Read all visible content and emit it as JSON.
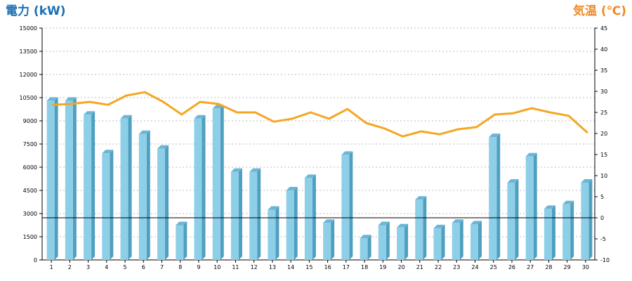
{
  "colors": {
    "left_title": "#1a6fb4",
    "right_title": "#f08a24",
    "bar_front": "#8ecfe8",
    "bar_side": "#4f9fc0",
    "bar_top": "#6bb6d6",
    "line": "#f5a623",
    "grid": "#bbbbbb"
  },
  "chart_data": {
    "type": "bar",
    "ylabel": "電力 (kW)",
    "y2label": "気温 (℃)",
    "ylim": [
      0,
      15000
    ],
    "y2lim": [
      -10,
      45
    ],
    "yticks": [
      0,
      1500,
      3000,
      4500,
      6000,
      7500,
      9000,
      10500,
      12000,
      13500,
      15000
    ],
    "y2ticks": [
      -10,
      -5,
      0,
      5,
      10,
      15,
      20,
      25,
      30,
      35,
      40,
      45
    ],
    "grid": true,
    "categories": [
      "1",
      "2",
      "3",
      "4",
      "5",
      "6",
      "7",
      "8",
      "9",
      "10",
      "11",
      "12",
      "13",
      "14",
      "15",
      "16",
      "17",
      "18",
      "19",
      "20",
      "21",
      "22",
      "23",
      "24",
      "25",
      "26",
      "27",
      "28",
      "29",
      "30"
    ],
    "series": [
      {
        "type": "bar",
        "axis": "left",
        "values": [
          10300,
          10300,
          9400,
          6900,
          9150,
          8150,
          7200,
          2250,
          9150,
          9800,
          5700,
          5700,
          3250,
          4500,
          5300,
          2400,
          6800,
          1400,
          2250,
          2100,
          3900,
          2050,
          2400,
          2300,
          7950,
          5000,
          6700,
          3300,
          3600,
          5000
        ]
      },
      {
        "type": "line",
        "axis": "right",
        "values": [
          26.8,
          27.0,
          27.5,
          26.8,
          29.0,
          29.8,
          27.5,
          24.5,
          27.5,
          27.0,
          25.0,
          25.0,
          22.8,
          23.5,
          25.0,
          23.5,
          25.8,
          22.5,
          21.2,
          19.3,
          20.5,
          19.8,
          21.0,
          21.5,
          24.5,
          24.8,
          26.0,
          25.0,
          24.2,
          20.3
        ]
      }
    ],
    "reference_line": {
      "axis": "right",
      "value": 0
    }
  }
}
